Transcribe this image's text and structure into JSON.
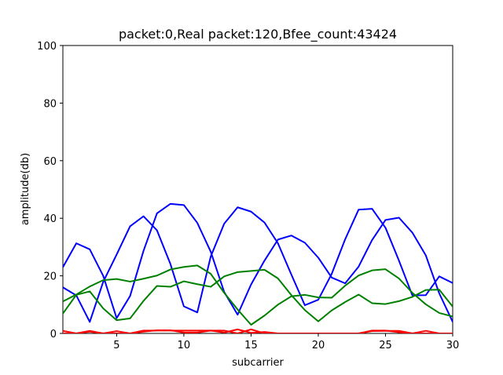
{
  "chart_data": {
    "type": "line",
    "title": "packet:0,Real packet:120,Bfee_count:43424",
    "xlabel": "subcarrier",
    "ylabel": "amplitude(db)",
    "xlim": [
      1,
      30
    ],
    "ylim": [
      0,
      100
    ],
    "xticks": [
      5,
      10,
      15,
      20,
      25,
      30
    ],
    "yticks": [
      0,
      20,
      40,
      60,
      80,
      100
    ],
    "grid": false,
    "x": [
      1,
      2,
      3,
      4,
      5,
      6,
      7,
      8,
      9,
      10,
      11,
      12,
      13,
      14,
      15,
      16,
      17,
      18,
      19,
      20,
      21,
      22,
      23,
      24,
      25,
      26,
      27,
      28,
      29,
      30
    ],
    "series": [
      {
        "color": "#0000ff",
        "values": [
          23,
          31.3,
          29.2,
          20,
          5.3,
          13,
          28.7,
          41.7,
          45,
          44.6,
          38.4,
          28.4,
          14.4,
          6.5,
          17,
          25.3,
          32.6,
          34,
          31.5,
          26.3,
          19.4,
          17.4,
          23.2,
          32.4,
          39.4,
          40.2,
          35,
          27.1,
          13.9,
          4
        ]
      },
      {
        "color": "#0000ff",
        "values": [
          16,
          13.2,
          4,
          17.9,
          27.4,
          37.2,
          40.7,
          35.8,
          24.1,
          9.4,
          7.3,
          26.7,
          38.1,
          43.8,
          42.3,
          38.5,
          31.3,
          20.4,
          9.8,
          11.7,
          20.7,
          32.7,
          43,
          43.3,
          36.7,
          25.3,
          13.2,
          13.3,
          19.8,
          17.5
        ]
      },
      {
        "color": "#008000",
        "values": [
          6.9,
          13.4,
          14.6,
          8.7,
          4.6,
          5.2,
          11.3,
          16.5,
          16.2,
          18.1,
          17.1,
          16.2,
          19.8,
          21.3,
          21.7,
          22.1,
          19.1,
          13.3,
          8.1,
          4.2,
          8,
          10.9,
          13.5,
          10.5,
          10.2,
          11.2,
          12.7,
          15.1,
          15.2,
          9.3
        ]
      },
      {
        "color": "#008000",
        "values": [
          11.1,
          13.5,
          16.3,
          18.5,
          18.9,
          18,
          19,
          20.1,
          22.2,
          23.1,
          23.6,
          20.7,
          14.1,
          8.3,
          3,
          6.2,
          10,
          12.9,
          13.4,
          12.5,
          12.4,
          16.6,
          20.1,
          21.9,
          22.3,
          19.1,
          14.1,
          10.1,
          7.1,
          5.9
        ]
      },
      {
        "color": "#ff0000",
        "values": [
          0.9,
          0,
          0.9,
          0,
          0.8,
          0,
          0.6,
          1.1,
          1.1,
          0.3,
          0.3,
          1,
          0.3,
          1.4,
          0.2,
          0.5,
          0,
          0,
          0,
          0,
          0,
          0,
          0,
          0.8,
          0.9,
          0.9,
          0,
          0.9,
          0,
          0
        ]
      },
      {
        "color": "#ff0000",
        "values": [
          0,
          0,
          0.6,
          0,
          0,
          0,
          1,
          1,
          1,
          1,
          1,
          1,
          1,
          0,
          1.4,
          0,
          0,
          0,
          0,
          0,
          0,
          0,
          0,
          1,
          1,
          0.4,
          0,
          0,
          0,
          0
        ]
      }
    ]
  }
}
